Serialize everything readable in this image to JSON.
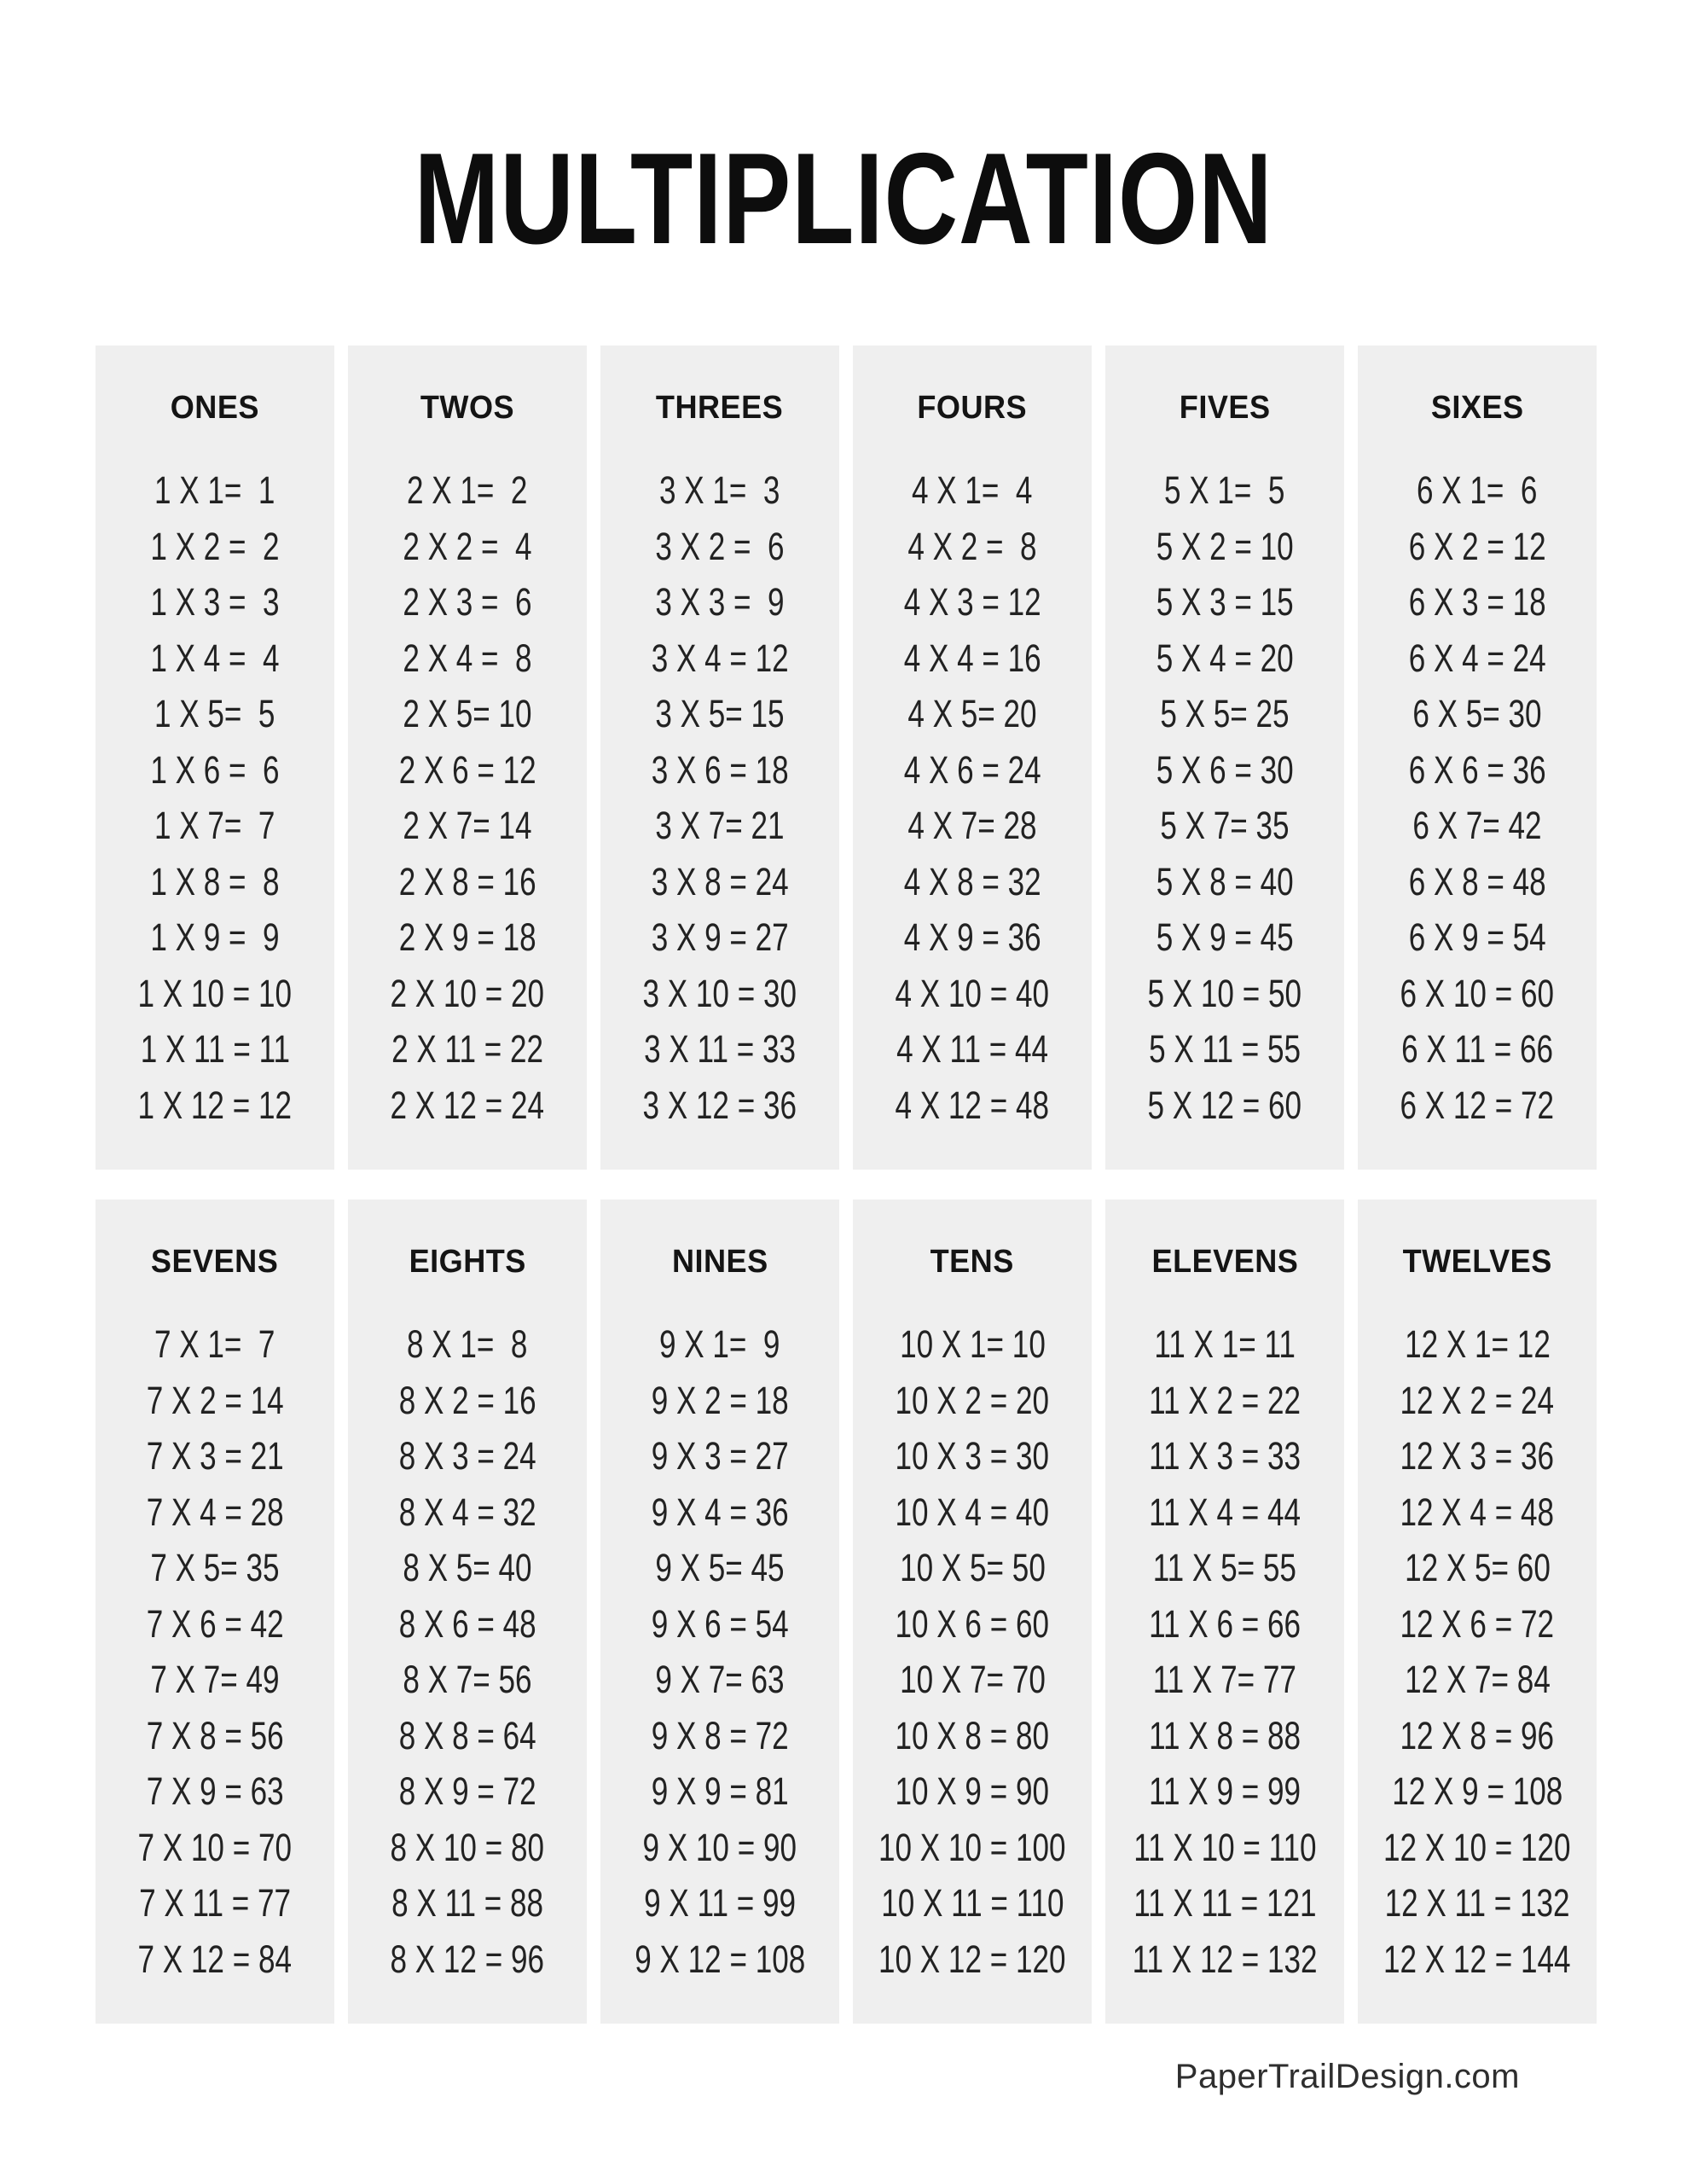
{
  "page": {
    "title": "MULTIPLICATION",
    "footer": "PaperTrailDesign.com",
    "background_color": "#ffffff",
    "panel_background_color": "#efefef",
    "text_color": "#222222",
    "title_color": "#0d0d0d"
  },
  "tables": [
    {
      "label": "ONES",
      "equations": [
        "1 X 1=  1",
        "1 X 2 =  2",
        "1 X 3 =  3",
        "1 X 4 =  4",
        "1 X 5=  5",
        "1 X 6 =  6",
        "1 X 7=  7",
        "1 X 8 =  8",
        "1 X 9 =  9",
        "1 X 10 = 10",
        "1 X 11 = 11",
        "1 X 12 = 12"
      ]
    },
    {
      "label": "TWOS",
      "equations": [
        "2 X 1=  2",
        "2 X 2 =  4",
        "2 X 3 =  6",
        "2 X 4 =  8",
        "2 X 5= 10",
        "2 X 6 = 12",
        "2 X 7= 14",
        "2 X 8 = 16",
        "2 X 9 = 18",
        "2 X 10 = 20",
        "2 X 11 = 22",
        "2 X 12 = 24"
      ]
    },
    {
      "label": "THREES",
      "equations": [
        "3 X 1=  3",
        "3 X 2 =  6",
        "3 X 3 =  9",
        "3 X 4 = 12",
        "3 X 5= 15",
        "3 X 6 = 18",
        "3 X 7= 21",
        "3 X 8 = 24",
        "3 X 9 = 27",
        "3 X 10 = 30",
        "3 X 11 = 33",
        "3 X 12 = 36"
      ]
    },
    {
      "label": "FOURS",
      "equations": [
        "4 X 1=  4",
        "4 X 2 =  8",
        "4 X 3 = 12",
        "4 X 4 = 16",
        "4 X 5= 20",
        "4 X 6 = 24",
        "4 X 7= 28",
        "4 X 8 = 32",
        "4 X 9 = 36",
        "4 X 10 = 40",
        "4 X 11 = 44",
        "4 X 12 = 48"
      ]
    },
    {
      "label": "FIVES",
      "equations": [
        "5 X 1=  5",
        "5 X 2 = 10",
        "5 X 3 = 15",
        "5 X 4 = 20",
        "5 X 5= 25",
        "5 X 6 = 30",
        "5 X 7= 35",
        "5 X 8 = 40",
        "5 X 9 = 45",
        "5 X 10 = 50",
        "5 X 11 = 55",
        "5 X 12 = 60"
      ]
    },
    {
      "label": "SIXES",
      "equations": [
        "6 X 1=  6",
        "6 X 2 = 12",
        "6 X 3 = 18",
        "6 X 4 = 24",
        "6 X 5= 30",
        "6 X 6 = 36",
        "6 X 7= 42",
        "6 X 8 = 48",
        "6 X 9 = 54",
        "6 X 10 = 60",
        "6 X 11 = 66",
        "6 X 12 = 72"
      ]
    },
    {
      "label": "SEVENS",
      "equations": [
        "7 X 1=  7",
        "7 X 2 = 14",
        "7 X 3 = 21",
        "7 X 4 = 28",
        "7 X 5= 35",
        "7 X 6 = 42",
        "7 X 7= 49",
        "7 X 8 = 56",
        "7 X 9 = 63",
        "7 X 10 = 70",
        "7 X 11 = 77",
        "7 X 12 = 84"
      ]
    },
    {
      "label": "EIGHTS",
      "equations": [
        "8 X 1=  8",
        "8 X 2 = 16",
        "8 X 3 = 24",
        "8 X 4 = 32",
        "8 X 5= 40",
        "8 X 6 = 48",
        "8 X 7= 56",
        "8 X 8 = 64",
        "8 X 9 = 72",
        "8 X 10 = 80",
        "8 X 11 = 88",
        "8 X 12 = 96"
      ]
    },
    {
      "label": "NINES",
      "equations": [
        "9 X 1=  9",
        "9 X 2 = 18",
        "9 X 3 = 27",
        "9 X 4 = 36",
        "9 X 5= 45",
        "9 X 6 = 54",
        "9 X 7= 63",
        "9 X 8 = 72",
        "9 X 9 = 81",
        "9 X 10 = 90",
        "9 X 11 = 99",
        "9 X 12 = 108"
      ]
    },
    {
      "label": "TENS",
      "equations": [
        "10 X 1= 10",
        "10 X 2 = 20",
        "10 X 3 = 30",
        "10 X 4 = 40",
        "10 X 5= 50",
        "10 X 6 = 60",
        "10 X 7= 70",
        "10 X 8 = 80",
        "10 X 9 = 90",
        "10 X 10 = 100",
        "10 X 11 = 110",
        "10 X 12 = 120"
      ]
    },
    {
      "label": "ELEVENS",
      "equations": [
        "11 X 1= 11",
        "11 X 2 = 22",
        "11 X 3 = 33",
        "11 X 4 = 44",
        "11 X 5= 55",
        "11 X 6 = 66",
        "11 X 7= 77",
        "11 X 8 = 88",
        "11 X 9 = 99",
        "11 X 10 = 110",
        "11 X 11 = 121",
        "11 X 12 = 132"
      ]
    },
    {
      "label": "TWELVES",
      "equations": [
        "12 X 1= 12",
        "12 X 2 = 24",
        "12 X 3 = 36",
        "12 X 4 = 48",
        "12 X 5= 60",
        "12 X 6 = 72",
        "12 X 7= 84",
        "12 X 8 = 96",
        "12 X 9 = 108",
        "12 X 10 = 120",
        "12 X 11 = 132",
        "12 X 12 = 144"
      ]
    }
  ]
}
